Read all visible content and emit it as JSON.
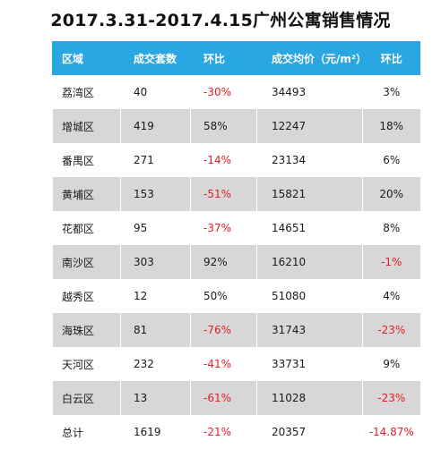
{
  "title": "2017.3.31-2017.4.15广州公寓销售情况",
  "headers": [
    "区域",
    "成交套数",
    "环比",
    "成交均价（元/m²）",
    "环比"
  ],
  "rows": [
    {
      "district": "荔湾区",
      "units": "40",
      "units_mom": "-30%",
      "price": "34493",
      "price_mom": "3%"
    },
    {
      "district": "增城区",
      "units": "419",
      "units_mom": "58%",
      "price": "12247",
      "price_mom": "18%"
    },
    {
      "district": "番禺区",
      "units": "271",
      "units_mom": "-14%",
      "price": "23134",
      "price_mom": "6%"
    },
    {
      "district": "黄埔区",
      "units": "153",
      "units_mom": "-51%",
      "price": "15821",
      "price_mom": "20%"
    },
    {
      "district": "花都区",
      "units": "95",
      "units_mom": "-37%",
      "price": "14651",
      "price_mom": "8%"
    },
    {
      "district": "南沙区",
      "units": "303",
      "units_mom": "92%",
      "price": "16210",
      "price_mom": "-1%"
    },
    {
      "district": "越秀区",
      "units": "12",
      "units_mom": "50%",
      "price": "51080",
      "price_mom": "4%"
    },
    {
      "district": "海珠区",
      "units": "81",
      "units_mom": "-76%",
      "price": "31743",
      "price_mom": "-23%"
    },
    {
      "district": "天河区",
      "units": "232",
      "units_mom": "-41%",
      "price": "33731",
      "price_mom": "9%"
    },
    {
      "district": "白云区",
      "units": "13",
      "units_mom": "-61%",
      "price": "11028",
      "price_mom": "-23%"
    }
  ],
  "total": {
    "district": "总计",
    "units": "1619",
    "units_mom": "-21%",
    "price": "20357",
    "price_mom": "-14.87%"
  },
  "colors": {
    "header_bg": "#2aa6e2",
    "negative": "#e0202a",
    "row_alt": "#d7d7d7"
  }
}
